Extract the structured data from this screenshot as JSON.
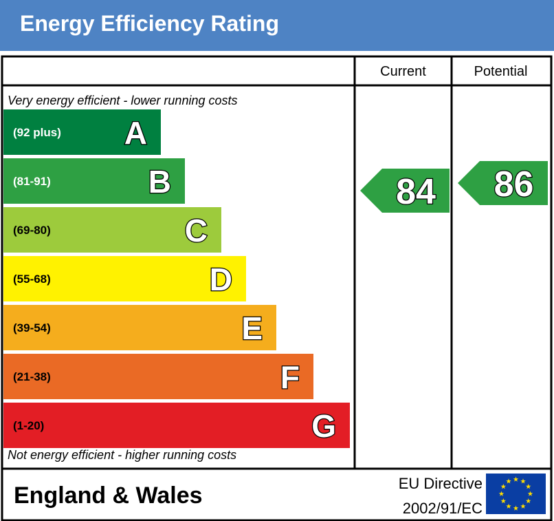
{
  "header": {
    "title": "Energy Efficiency Rating"
  },
  "columns": {
    "current": "Current",
    "potential": "Potential"
  },
  "notes": {
    "top": "Very energy efficient - lower running costs",
    "bottom": "Not energy efficient - higher running costs"
  },
  "chart_data": {
    "type": "bar",
    "categories": [
      "A",
      "B",
      "C",
      "D",
      "E",
      "F",
      "G"
    ],
    "bands": [
      {
        "letter": "A",
        "range": "(92 plus)",
        "min": 92,
        "color": "#008040"
      },
      {
        "letter": "B",
        "range": "(81-91)",
        "min": 81,
        "color": "#2ea043"
      },
      {
        "letter": "C",
        "range": "(69-80)",
        "min": 69,
        "color": "#9dcb3c"
      },
      {
        "letter": "D",
        "range": "(55-68)",
        "min": 55,
        "color": "#fff200"
      },
      {
        "letter": "E",
        "range": "(39-54)",
        "min": 39,
        "color": "#f5ad1d"
      },
      {
        "letter": "F",
        "range": "(21-38)",
        "min": 21,
        "color": "#ea6a25"
      },
      {
        "letter": "G",
        "range": "(1-20)",
        "min": 1,
        "color": "#e31e25"
      }
    ],
    "current": {
      "value": 84,
      "band": "B"
    },
    "potential": {
      "value": 86,
      "band": "B"
    }
  },
  "footer": {
    "region": "England & Wales",
    "directive_line1": "EU Directive",
    "directive_line2": "2002/91/EC"
  },
  "colors": {
    "header": "#4e83c4",
    "eu_flag": "#0a3ea3",
    "eu_star": "#ffdd00"
  }
}
